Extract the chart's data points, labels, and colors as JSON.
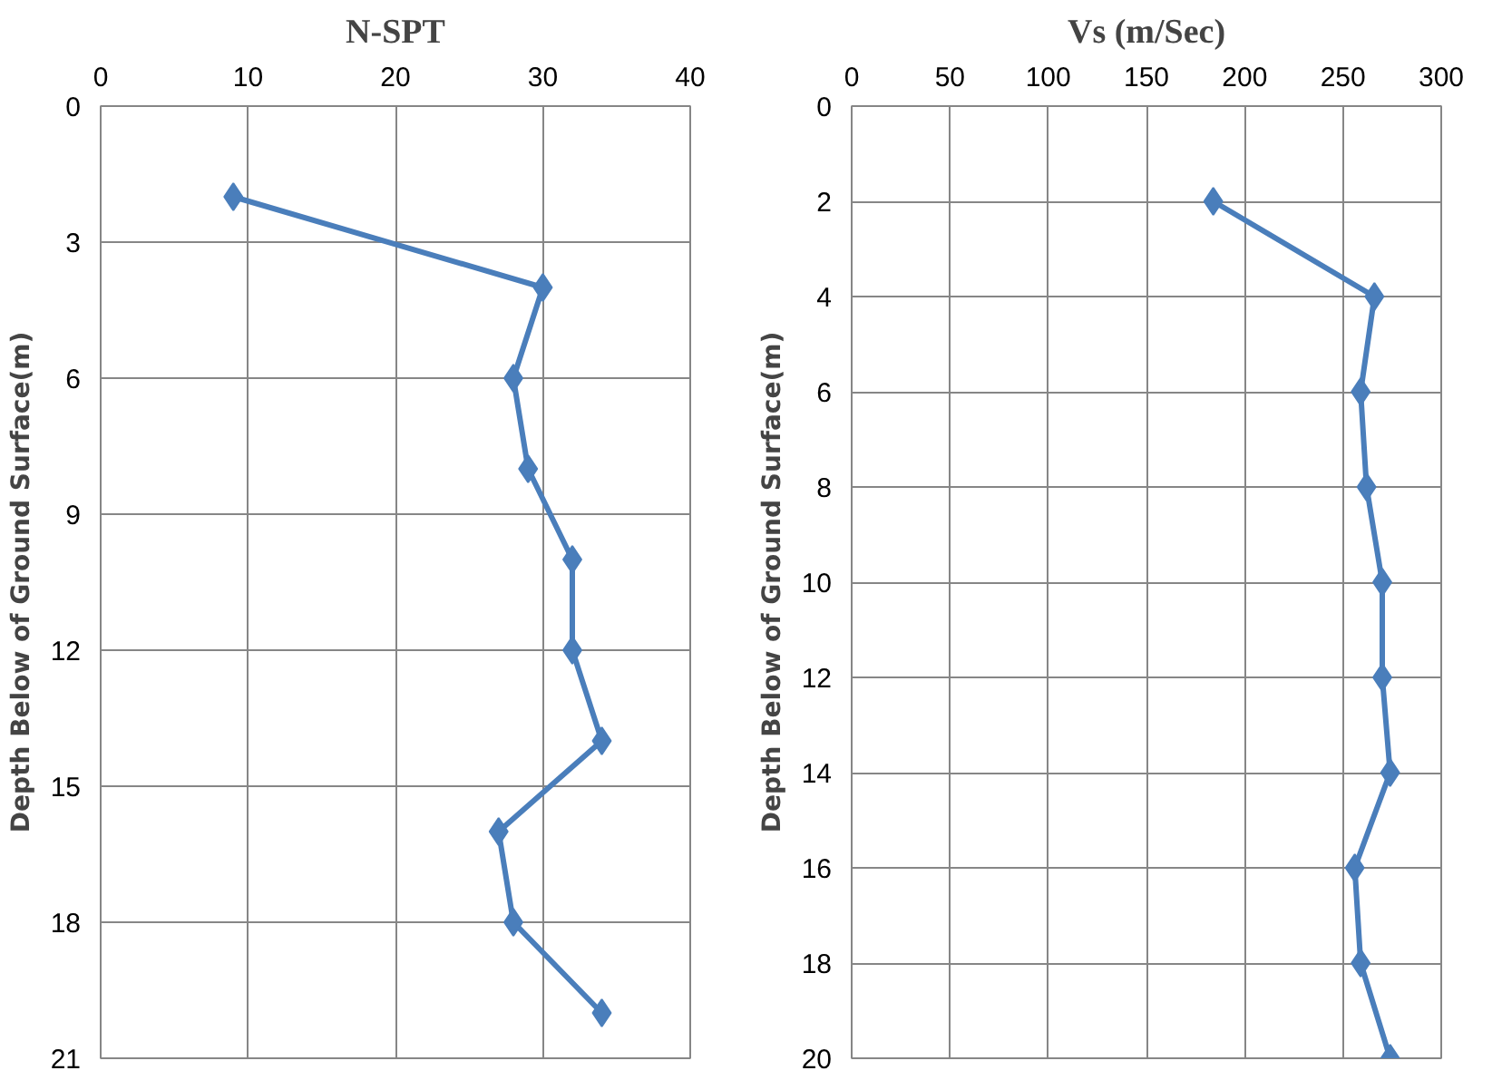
{
  "chart_data": [
    {
      "type": "line",
      "title": "N-SPT",
      "ylabel": "Depth Below of Ground Surface(m)",
      "xlim": [
        0,
        40
      ],
      "xticks": [
        0,
        10,
        20,
        30,
        40
      ],
      "ylim": [
        21,
        0
      ],
      "yticks": [
        0,
        3,
        6,
        9,
        12,
        15,
        18,
        21
      ],
      "grid": true,
      "marker": "diamond",
      "line_style": "solid",
      "series": [
        {
          "color": "#4a7ebb",
          "x": [
            9,
            30,
            28,
            29,
            32,
            32,
            34,
            27,
            28,
            34
          ],
          "values": [
            2,
            4,
            6,
            8,
            10,
            12,
            14,
            16,
            18,
            20
          ]
        }
      ]
    },
    {
      "type": "line",
      "title": "Vs (m/Sec)",
      "ylabel": "Depth Below of Ground Surface(m)",
      "xlim": [
        0,
        300
      ],
      "xticks": [
        0,
        50,
        100,
        150,
        200,
        250,
        300
      ],
      "ylim": [
        20,
        0
      ],
      "yticks": [
        0,
        2,
        4,
        6,
        8,
        10,
        12,
        14,
        16,
        18,
        20
      ],
      "grid": true,
      "marker": "diamond",
      "line_style": "solid",
      "series": [
        {
          "color": "#4a7ebb",
          "x": [
            184,
            266,
            259,
            262,
            270,
            270,
            274,
            256,
            259,
            274
          ],
          "values": [
            2,
            4,
            6,
            8,
            10,
            12,
            14,
            16,
            18,
            20
          ]
        }
      ]
    }
  ]
}
